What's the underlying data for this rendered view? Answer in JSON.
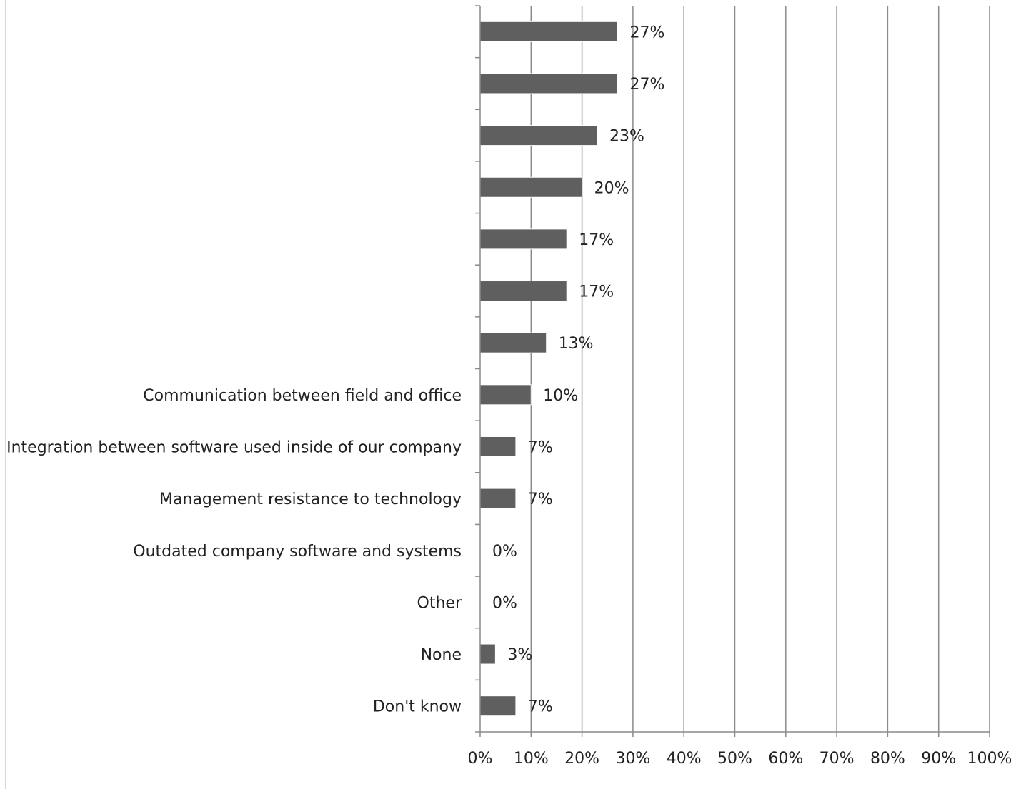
{
  "chart_data": {
    "type": "bar",
    "orientation": "horizontal",
    "categories": [
      "",
      "",
      "",
      "",
      "",
      "",
      "",
      "Communication between field and office",
      "Integration between software used inside of our company",
      "Management resistance to technology",
      "Outdated company software and systems",
      "Other",
      "None",
      "Don't know"
    ],
    "values": [
      27,
      27,
      23,
      20,
      17,
      17,
      13,
      10,
      7,
      7,
      0,
      0,
      3,
      7
    ],
    "data_labels": [
      "27%",
      "27%",
      "23%",
      "20%",
      "17%",
      "17%",
      "13%",
      "10%",
      "7%",
      "7%",
      "0%",
      "0%",
      "3%",
      "7%"
    ],
    "xlim": [
      0,
      100
    ],
    "x_ticks": [
      "0%",
      "10%",
      "20%",
      "30%",
      "40%",
      "50%",
      "60%",
      "70%",
      "80%",
      "90%",
      "100%"
    ],
    "grid": "vertical",
    "bar_color": "#5f5f5f",
    "grid_color": "#8a8a8a",
    "title": "",
    "xlabel": "",
    "ylabel": ""
  }
}
